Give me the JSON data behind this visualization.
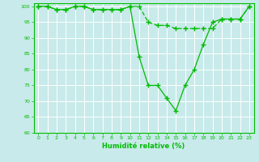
{
  "xlabel": "Humidité relative (%)",
  "xlim": [
    -0.5,
    23.5
  ],
  "ylim": [
    60,
    101
  ],
  "yticks": [
    60,
    65,
    70,
    75,
    80,
    85,
    90,
    95,
    100
  ],
  "xticks": [
    0,
    1,
    2,
    3,
    4,
    5,
    6,
    7,
    8,
    9,
    10,
    11,
    12,
    13,
    14,
    15,
    16,
    17,
    18,
    19,
    20,
    21,
    22,
    23
  ],
  "bg_color": "#c8eaea",
  "grid_color": "#aaddcc",
  "line_color": "#00bb00",
  "line1_x": [
    0,
    1,
    2,
    3,
    4,
    5,
    6,
    7,
    8,
    9,
    10,
    11,
    12,
    13,
    14,
    15,
    16,
    17,
    18,
    19,
    20,
    21,
    22,
    23
  ],
  "line1_y": [
    100,
    100,
    99,
    99,
    100,
    100,
    99,
    99,
    99,
    99,
    100,
    100,
    95,
    94,
    94,
    93,
    93,
    93,
    93,
    93,
    96,
    96,
    96,
    100
  ],
  "line2_x": [
    0,
    1,
    2,
    3,
    4,
    5,
    6,
    7,
    8,
    9,
    10,
    11,
    12,
    13,
    14,
    15,
    16,
    17,
    18,
    19,
    20,
    21,
    22,
    23
  ],
  "line2_y": [
    100,
    100,
    99,
    99,
    100,
    100,
    99,
    99,
    99,
    99,
    100,
    84,
    75,
    75,
    71,
    67,
    75,
    80,
    88,
    95,
    96,
    96,
    96,
    100
  ]
}
